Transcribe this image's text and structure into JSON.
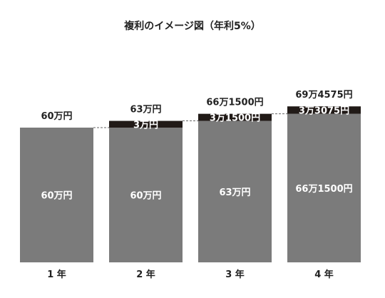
{
  "chart_data": {
    "type": "bar",
    "stacked": true,
    "title": "複利のイメージ図（年利5%）",
    "categories": [
      "1 年",
      "2 年",
      "3 年",
      "4 年"
    ],
    "series": [
      {
        "values": [
          600000,
          600000,
          630000,
          661500
        ],
        "labels": [
          "60万円",
          "60万円",
          "63万円",
          "66万1500円"
        ],
        "color": "#7b7b7b"
      },
      {
        "values": [
          0,
          30000,
          31500,
          33075
        ],
        "labels": [
          "",
          "3万円",
          "3万1500円",
          "3万3075円"
        ],
        "color": "#211a17"
      }
    ],
    "totals": [
      600000,
      630000,
      661500,
      694575
    ],
    "total_labels": [
      "60万円",
      "63万円",
      "66万1500円",
      "69万4575円"
    ],
    "connectors": "dashed lines linking each bar top to the next bar's base segment top",
    "ylim": [
      0,
      694575
    ],
    "grid": false,
    "legend": "none"
  }
}
